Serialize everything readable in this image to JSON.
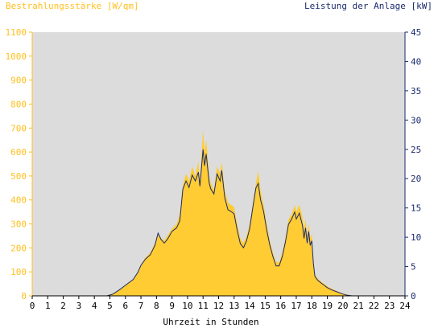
{
  "chart_data": {
    "type": "area",
    "title_left": "Bestrahlungsstärke [W/qm]",
    "title_right": "Leistung der Anlage [kW]",
    "xlabel": "Uhrzeit in Stunden",
    "xlim": [
      0,
      24
    ],
    "x_ticks": [
      0,
      1,
      2,
      3,
      4,
      5,
      6,
      7,
      8,
      9,
      10,
      11,
      12,
      13,
      14,
      15,
      16,
      17,
      18,
      19,
      20,
      21,
      22,
      23,
      24
    ],
    "ylim_left": [
      0,
      1100
    ],
    "y_ticks_left": [
      0,
      100,
      200,
      300,
      400,
      500,
      600,
      700,
      800,
      900,
      1000,
      1100
    ],
    "ylim_right": [
      0,
      45
    ],
    "y_ticks_right": [
      0,
      5,
      10,
      15,
      20,
      25,
      30,
      35,
      40,
      45
    ],
    "colors": {
      "plot_bg": "#dcdcdc",
      "irradiance_fill": "#ffcc33",
      "power_line": "#1c2a6e",
      "left_axis": "#ffc020",
      "right_axis": "#1c2a6e"
    },
    "series": [
      {
        "name": "Bestrahlungsstärke",
        "axis": "left",
        "x": [
          0,
          4.8,
          5.2,
          5.6,
          6.0,
          6.5,
          6.8,
          7.0,
          7.3,
          7.6,
          7.9,
          8.1,
          8.3,
          8.5,
          8.7,
          9.0,
          9.3,
          9.5,
          9.7,
          9.9,
          10.1,
          10.3,
          10.5,
          10.7,
          10.8,
          11.0,
          11.1,
          11.2,
          11.4,
          11.5,
          11.7,
          11.9,
          12.1,
          12.2,
          12.4,
          12.6,
          12.8,
          13.0,
          13.2,
          13.4,
          13.6,
          13.8,
          14.0,
          14.2,
          14.4,
          14.55,
          14.7,
          14.9,
          15.1,
          15.3,
          15.5,
          15.7,
          15.9,
          16.1,
          16.3,
          16.5,
          16.7,
          16.9,
          17.0,
          17.2,
          17.4,
          17.5,
          17.6,
          17.7,
          17.8,
          17.9,
          18.0,
          18.1,
          18.2,
          18.4,
          18.6,
          18.8,
          19.0,
          19.3,
          19.6,
          20.0,
          20.3,
          20.6,
          21.0,
          24
        ],
        "values": [
          0,
          0,
          10,
          25,
          45,
          70,
          100,
          130,
          160,
          180,
          220,
          260,
          240,
          230,
          250,
          280,
          300,
          340,
          460,
          510,
          480,
          540,
          500,
          560,
          480,
          690,
          600,
          650,
          500,
          470,
          440,
          540,
          510,
          560,
          440,
          390,
          380,
          370,
          300,
          240,
          220,
          250,
          300,
          380,
          470,
          520,
          440,
          380,
          300,
          230,
          180,
          140,
          140,
          180,
          240,
          320,
          340,
          380,
          350,
          380,
          330,
          280,
          320,
          250,
          300,
          240,
          260,
          150,
          90,
          70,
          60,
          50,
          40,
          30,
          20,
          10,
          5,
          0,
          0,
          0
        ]
      },
      {
        "name": "Leistung der Anlage",
        "axis": "right",
        "x": [
          0,
          4.8,
          5.2,
          5.6,
          6.0,
          6.5,
          6.8,
          7.0,
          7.3,
          7.6,
          7.9,
          8.1,
          8.3,
          8.5,
          8.7,
          9.0,
          9.3,
          9.5,
          9.7,
          9.9,
          10.1,
          10.3,
          10.5,
          10.7,
          10.8,
          11.0,
          11.1,
          11.2,
          11.4,
          11.5,
          11.7,
          11.9,
          12.1,
          12.2,
          12.4,
          12.6,
          12.8,
          13.0,
          13.2,
          13.4,
          13.6,
          13.8,
          14.0,
          14.2,
          14.4,
          14.55,
          14.7,
          14.9,
          15.1,
          15.3,
          15.5,
          15.7,
          15.9,
          16.1,
          16.3,
          16.5,
          16.7,
          16.9,
          17.0,
          17.2,
          17.4,
          17.5,
          17.6,
          17.7,
          17.8,
          17.9,
          18.0,
          18.1,
          18.2,
          18.4,
          18.6,
          18.8,
          19.0,
          19.3,
          19.6,
          20.0,
          20.3,
          20.6,
          21.0,
          24
        ],
        "values": [
          0,
          0,
          0.3,
          1.0,
          1.8,
          2.8,
          4.0,
          5.2,
          6.3,
          7.0,
          8.6,
          10.7,
          9.6,
          9.0,
          9.6,
          11.0,
          11.6,
          12.8,
          18.2,
          19.6,
          18.5,
          20.6,
          19.6,
          21.1,
          18.7,
          25.0,
          22.2,
          24.2,
          19.2,
          18.2,
          17.4,
          20.8,
          19.6,
          21.4,
          16.7,
          14.7,
          14.4,
          14.0,
          11.2,
          8.9,
          8.2,
          9.4,
          11.5,
          15.0,
          18.4,
          19.2,
          16.4,
          14.4,
          11.2,
          8.6,
          6.7,
          5.1,
          5.1,
          6.7,
          9.2,
          12.2,
          13.1,
          14.3,
          13.1,
          14.1,
          12.0,
          9.8,
          11.6,
          9.0,
          11.0,
          8.6,
          9.4,
          5.6,
          3.3,
          2.6,
          2.2,
          1.8,
          1.4,
          1.0,
          0.7,
          0.3,
          0.1,
          0,
          0,
          0
        ]
      }
    ]
  }
}
